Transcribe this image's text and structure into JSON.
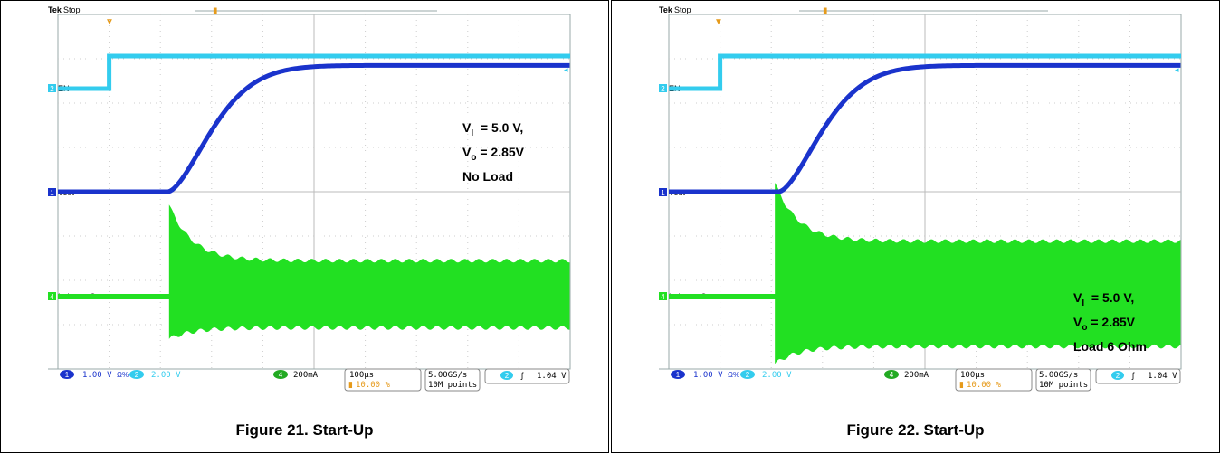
{
  "figures": [
    {
      "caption": "Figure 21. Start-Up",
      "annotation": {
        "vi": "= 5.0 V,",
        "vo": "= 2.85V",
        "load": "No Load"
      },
      "chart_data": {
        "type": "line",
        "title": "",
        "instrument": "Tek",
        "state": "Stop",
        "x_unit": "µs",
        "x": [
          0,
          100,
          200,
          300,
          400,
          500,
          600,
          700,
          800,
          900,
          1000
        ],
        "series": [
          {
            "name": "EN",
            "channel": "2",
            "values": [
              0,
              0,
              0.0,
              2.9,
              2.9,
              2.9,
              2.9,
              2.9,
              2.9,
              2.9,
              2.9
            ],
            "color": "#33ccee"
          },
          {
            "name": "Vout",
            "channel": "1",
            "values": [
              0,
              0,
              0,
              0,
              0.5,
              1.9,
              2.55,
              2.78,
              2.83,
              2.85,
              2.85
            ],
            "color": "#1a33cc"
          },
          {
            "name": "Inductor Current",
            "channel": "4",
            "values": [
              0,
              0,
              0,
              0,
              0,
              0.34,
              0.02,
              0.01,
              0.01,
              0.01,
              0.01
            ],
            "color": "#22e022"
          }
        ],
        "pattern": {
          "onset": 0.217,
          "peak": 0.74,
          "ringHi": 0.28,
          "ringLo": 0.22,
          "teeth": 23
        },
        "readout": {
          "ch1": "1.00 V",
          "ch1_flag": "Ω%",
          "ch2": "2.00 V",
          "ch4": "200mA",
          "timebase": "100µs",
          "trigger_pos": "10.00 %",
          "sample_rate": "5.00GS/s",
          "record": "10M points",
          "trig_ch": "2",
          "trig_slope": "ʃ",
          "trig_level": "1.04 V"
        },
        "colors": {
          "ch1": "#1a33cc",
          "ch2": "#33ccee",
          "ch4": "#22e022",
          "trigger": "#e69a1a"
        }
      }
    },
    {
      "caption": "Figure 22. Start-Up",
      "annotation": {
        "vi": "= 5.0 V,",
        "vo": "= 2.85V",
        "load": "Load 6 Ohm"
      },
      "chart_data": {
        "type": "line",
        "title": "",
        "instrument": "Tek",
        "state": "Stop",
        "x_unit": "µs",
        "x": [
          0,
          100,
          200,
          300,
          400,
          500,
          600,
          700,
          800,
          900,
          1000
        ],
        "series": [
          {
            "name": "EN",
            "channel": "2",
            "values": [
              0,
              0,
              0.0,
              2.9,
              2.9,
              2.9,
              2.9,
              2.9,
              2.9,
              2.9,
              2.9
            ],
            "color": "#33ccee"
          },
          {
            "name": "Vout",
            "channel": "1",
            "values": [
              0,
              0,
              0,
              0,
              0.5,
              1.9,
              2.55,
              2.78,
              2.83,
              2.85,
              2.85
            ],
            "color": "#1a33cc"
          },
          {
            "name": "Inductor Current",
            "channel": "4",
            "values": [
              0,
              0,
              0,
              0,
              0,
              0.45,
              0.44,
              0.44,
              0.44,
              0.44,
              0.44
            ],
            "color": "#22e022"
          }
        ],
        "pattern": {
          "onset": 0.207,
          "peak": 0.92,
          "ringHi": 0.44,
          "ringLo": 0.36,
          "teeth": 23
        },
        "readout": {
          "ch1": "1.00 V",
          "ch1_flag": "Ω%",
          "ch2": "2.00 V",
          "ch4": "200mA",
          "timebase": "100µs",
          "trigger_pos": "10.00 %",
          "sample_rate": "5.00GS/s",
          "record": "10M points",
          "trig_ch": "2",
          "trig_slope": "ʃ",
          "trig_level": "1.04 V"
        },
        "colors": {
          "ch1": "#1a33cc",
          "ch2": "#33ccee",
          "ch4": "#22e022",
          "trigger": "#e69a1a"
        }
      }
    }
  ]
}
